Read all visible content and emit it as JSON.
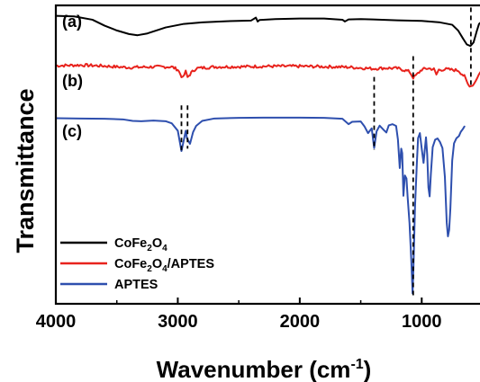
{
  "chart_data": {
    "type": "line",
    "xlabel": "Wavenumber",
    "xlabel_unit": "(cm",
    "xlabel_exp": "-1",
    "ylabel": "Transmittance",
    "xlim": [
      4000,
      500
    ],
    "x_reversed": true,
    "xticks": [
      4000,
      3000,
      2000,
      1000
    ],
    "xtick_labels": [
      "4000",
      "3000",
      "2000",
      "1000"
    ],
    "y_ticks_shown": false,
    "grid": false,
    "legend_position": "bottom-left",
    "trace_labels": [
      "(a)",
      "(b)",
      "(c)"
    ],
    "legend": [
      {
        "base": "CoFe",
        "s1": "2",
        "mid": "O",
        "s2": "4",
        "tail": ""
      },
      {
        "base": "CoFe",
        "s1": "2",
        "mid": "O",
        "s2": "4",
        "tail": "/APTES"
      },
      {
        "base": "APTES",
        "s1": "",
        "mid": "",
        "s2": "",
        "tail": ""
      }
    ],
    "series": [
      {
        "name": "CoFe2O4",
        "color": "#000000",
        "points": [
          [
            4000,
            96.5
          ],
          [
            3850,
            96.3
          ],
          [
            3700,
            95.2
          ],
          [
            3600,
            93.2
          ],
          [
            3500,
            91.6
          ],
          [
            3400,
            90.4
          ],
          [
            3330,
            90.0
          ],
          [
            3250,
            90.6
          ],
          [
            3100,
            92.6
          ],
          [
            2950,
            93.8
          ],
          [
            2800,
            94.3
          ],
          [
            2600,
            94.7
          ],
          [
            2400,
            94.9
          ],
          [
            2360,
            95.9
          ],
          [
            2345,
            94.6
          ],
          [
            2330,
            95.1
          ],
          [
            2200,
            95.4
          ],
          [
            2000,
            95.6
          ],
          [
            1800,
            95.6
          ],
          [
            1650,
            95.2
          ],
          [
            1630,
            94.6
          ],
          [
            1600,
            95.3
          ],
          [
            1500,
            95.4
          ],
          [
            1400,
            95.3
          ],
          [
            1200,
            95.0
          ],
          [
            1000,
            94.8
          ],
          [
            850,
            94.3
          ],
          [
            750,
            93.5
          ],
          [
            700,
            91.5
          ],
          [
            660,
            88.8
          ],
          [
            630,
            86.9
          ],
          [
            600,
            86.4
          ],
          [
            575,
            87.6
          ],
          [
            550,
            91.2
          ],
          [
            530,
            93.8
          ],
          [
            510,
            94.5
          ]
        ]
      },
      {
        "name": "CoFe2O4/APTES",
        "color": "#e8231d",
        "noise": 0.5,
        "points": [
          [
            4000,
            79.8
          ],
          [
            3800,
            80.0
          ],
          [
            3600,
            79.7
          ],
          [
            3500,
            79.4
          ],
          [
            3400,
            79.2
          ],
          [
            3200,
            79.4
          ],
          [
            3050,
            79.4
          ],
          [
            3000,
            78.5
          ],
          [
            2960,
            75.6
          ],
          [
            2935,
            77.8
          ],
          [
            2920,
            75.9
          ],
          [
            2890,
            77.4
          ],
          [
            2850,
            78.9
          ],
          [
            2700,
            79.4
          ],
          [
            2400,
            79.5
          ],
          [
            2300,
            79.6
          ],
          [
            2000,
            79.6
          ],
          [
            1700,
            79.4
          ],
          [
            1600,
            79.3
          ],
          [
            1480,
            79.0
          ],
          [
            1400,
            78.8
          ],
          [
            1300,
            79.0
          ],
          [
            1200,
            78.9
          ],
          [
            1150,
            78.4
          ],
          [
            1100,
            77.8
          ],
          [
            1070,
            75.8
          ],
          [
            1040,
            76.8
          ],
          [
            1000,
            78.5
          ],
          [
            950,
            78.9
          ],
          [
            900,
            78.6
          ],
          [
            880,
            76.8
          ],
          [
            860,
            78.4
          ],
          [
            800,
            78.6
          ],
          [
            700,
            78.2
          ],
          [
            650,
            76.2
          ],
          [
            620,
            73.5
          ],
          [
            595,
            73.0
          ],
          [
            570,
            73.8
          ],
          [
            545,
            75.9
          ],
          [
            520,
            77.6
          ]
        ]
      },
      {
        "name": "APTES",
        "color": "#2e4fae",
        "points": [
          [
            4000,
            62.2
          ],
          [
            3800,
            62.1
          ],
          [
            3600,
            62.0
          ],
          [
            3450,
            61.8
          ],
          [
            3370,
            61.3
          ],
          [
            3300,
            61.2
          ],
          [
            3200,
            61.4
          ],
          [
            3100,
            61.2
          ],
          [
            3050,
            60.5
          ],
          [
            3000,
            58.0
          ],
          [
            2970,
            51.2
          ],
          [
            2950,
            55.0
          ],
          [
            2935,
            58.0
          ],
          [
            2925,
            55.5
          ],
          [
            2900,
            53.6
          ],
          [
            2875,
            57.5
          ],
          [
            2850,
            59.6
          ],
          [
            2800,
            61.3
          ],
          [
            2700,
            62.1
          ],
          [
            2500,
            62.3
          ],
          [
            2300,
            62.4
          ],
          [
            2000,
            62.4
          ],
          [
            1800,
            62.3
          ],
          [
            1650,
            62.0
          ],
          [
            1600,
            60.2
          ],
          [
            1570,
            61.0
          ],
          [
            1500,
            61.1
          ],
          [
            1470,
            59.5
          ],
          [
            1440,
            57.2
          ],
          [
            1410,
            58.8
          ],
          [
            1390,
            52.2
          ],
          [
            1370,
            57.8
          ],
          [
            1345,
            59.7
          ],
          [
            1310,
            58.2
          ],
          [
            1290,
            57.4
          ],
          [
            1270,
            59.8
          ],
          [
            1240,
            60.2
          ],
          [
            1210,
            59.6
          ],
          [
            1195,
            55.0
          ],
          [
            1180,
            45.5
          ],
          [
            1168,
            52.0
          ],
          [
            1160,
            50.5
          ],
          [
            1150,
            36.2
          ],
          [
            1138,
            43.0
          ],
          [
            1125,
            42.0
          ],
          [
            1115,
            35.5
          ],
          [
            1100,
            27.0
          ],
          [
            1085,
            14.2
          ],
          [
            1075,
            3.5
          ],
          [
            1068,
            12.0
          ],
          [
            1055,
            32.5
          ],
          [
            1040,
            47.0
          ],
          [
            1030,
            55.5
          ],
          [
            1015,
            57.2
          ],
          [
            1000,
            52.0
          ],
          [
            985,
            47.2
          ],
          [
            975,
            51.5
          ],
          [
            965,
            55.8
          ],
          [
            955,
            50.0
          ],
          [
            945,
            39.0
          ],
          [
            935,
            36.0
          ],
          [
            925,
            43.5
          ],
          [
            910,
            52.5
          ],
          [
            890,
            55.0
          ],
          [
            870,
            55.4
          ],
          [
            850,
            54.2
          ],
          [
            830,
            52.2
          ],
          [
            810,
            42.5
          ],
          [
            795,
            27.2
          ],
          [
            785,
            22.6
          ],
          [
            775,
            24.8
          ],
          [
            765,
            32.0
          ],
          [
            750,
            48.0
          ],
          [
            735,
            53.8
          ],
          [
            715,
            55.5
          ],
          [
            695,
            56.2
          ],
          [
            680,
            57.6
          ],
          [
            662,
            58.6
          ],
          [
            650,
            59.4
          ]
        ]
      }
    ],
    "dashed_markers": [
      {
        "x": 2970,
        "y_top": 66.5,
        "y_bottom": 50.5
      },
      {
        "x": 2920,
        "y_top": 66.5,
        "y_bottom": 52.0
      },
      {
        "x": 1390,
        "y_top": 76.0,
        "y_bottom": 51.5
      },
      {
        "x": 1070,
        "y_top": 83.0,
        "y_bottom": 2.5
      },
      {
        "x": 597,
        "y_top": 99.3,
        "y_bottom": 72.5
      }
    ]
  }
}
